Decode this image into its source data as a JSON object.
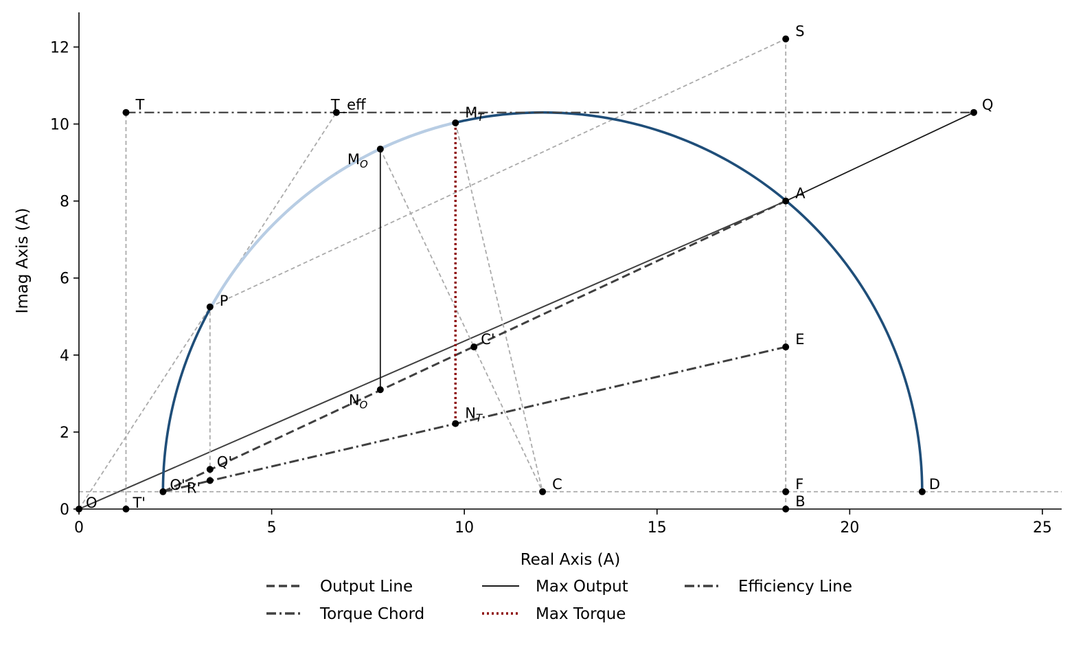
{
  "chart_data": {
    "type": "line",
    "xlabel": "Real Axis (A)",
    "ylabel": "Imag Axis (A)",
    "xlim": [
      0,
      25.5
    ],
    "ylim": [
      0,
      12.9
    ],
    "x_ticks": [
      0,
      5,
      10,
      15,
      20,
      25
    ],
    "y_ticks": [
      0,
      2,
      4,
      6,
      8,
      10,
      12
    ],
    "grid": false,
    "legend_position": "bottom",
    "circle": {
      "center": [
        12.03,
        0.45
      ],
      "radius": 9.85,
      "color": "#1f4e79"
    },
    "points": [
      {
        "id": "O",
        "label": "O",
        "x": 0.0,
        "y": 0.0,
        "dx": 10,
        "dy": -2
      },
      {
        "id": "Op",
        "label": "O'",
        "x": 2.18,
        "y": 0.45,
        "dx": 10,
        "dy": -3
      },
      {
        "id": "Tp",
        "label": "T'",
        "x": 1.22,
        "y": 0.0,
        "dx": 10,
        "dy": -2
      },
      {
        "id": "Rp",
        "label": "R'",
        "x": 3.4,
        "y": 0.74,
        "dx": -34,
        "dy": 18
      },
      {
        "id": "Qp",
        "label": "Q'",
        "x": 3.4,
        "y": 1.03,
        "dx": 10,
        "dy": -4
      },
      {
        "id": "P",
        "label": "P",
        "x": 3.4,
        "y": 5.25,
        "dx": 14,
        "dy": -2
      },
      {
        "id": "T",
        "label": "T",
        "x": 1.22,
        "y": 10.3,
        "dx": 14,
        "dy": -4
      },
      {
        "id": "Teff",
        "label": "T_eff",
        "x": 6.68,
        "y": 10.3,
        "dx": -8,
        "dy": -4
      },
      {
        "id": "MO",
        "label": "M",
        "sub": "O",
        "x": 7.82,
        "y": 9.35,
        "dx": -48,
        "dy": 22
      },
      {
        "id": "MT",
        "label": "M",
        "sub": "T",
        "x": 9.77,
        "y": 10.03,
        "dx": 14,
        "dy": -8
      },
      {
        "id": "NO",
        "label": "N",
        "sub": "O",
        "x": 7.82,
        "y": 3.1,
        "dx": -46,
        "dy": 22
      },
      {
        "id": "NT",
        "label": "N",
        "sub": "T",
        "x": 9.77,
        "y": 2.22,
        "dx": 14,
        "dy": -8
      },
      {
        "id": "Cp",
        "label": "C'",
        "x": 10.25,
        "y": 4.21,
        "dx": 10,
        "dy": -4
      },
      {
        "id": "C",
        "label": "C",
        "x": 12.03,
        "y": 0.45,
        "dx": 14,
        "dy": -4
      },
      {
        "id": "D",
        "label": "D",
        "x": 21.88,
        "y": 0.45,
        "dx": 10,
        "dy": -4
      },
      {
        "id": "S",
        "label": "S",
        "x": 18.34,
        "y": 12.21,
        "dx": 14,
        "dy": -4
      },
      {
        "id": "Q",
        "label": "Q",
        "x": 23.22,
        "y": 10.3,
        "dx": 12,
        "dy": -4
      },
      {
        "id": "A",
        "label": "A",
        "x": 18.34,
        "y": 8.0,
        "dx": 14,
        "dy": -4
      },
      {
        "id": "E",
        "label": "E",
        "x": 18.34,
        "y": 4.21,
        "dx": 14,
        "dy": -4
      },
      {
        "id": "F",
        "label": "F",
        "x": 18.34,
        "y": 0.45,
        "dx": 14,
        "dy": -4
      },
      {
        "id": "B",
        "label": "B",
        "x": 18.34,
        "y": 0.0,
        "dx": 14,
        "dy": -4
      }
    ],
    "series": [
      {
        "name": "Output Line",
        "style": "dashed",
        "color": "#404040",
        "width": 3,
        "points": [
          [
            2.18,
            0.45
          ],
          [
            18.34,
            8.0
          ]
        ]
      },
      {
        "name": "Torque Chord",
        "style": "dashdot",
        "color": "#404040",
        "width": 3,
        "points": [
          [
            2.18,
            0.45
          ],
          [
            18.34,
            4.21
          ]
        ]
      },
      {
        "name": "Max Output",
        "style": "solid",
        "color": "#1a1a1a",
        "width": 1.8,
        "points": [
          [
            7.82,
            9.35
          ],
          [
            7.82,
            3.1
          ]
        ]
      },
      {
        "name": "Max Torque",
        "style": "dotted",
        "color": "#8b0000",
        "width": 3.5,
        "points": [
          [
            9.77,
            10.03
          ],
          [
            9.77,
            2.22
          ]
        ]
      },
      {
        "name": "Efficiency Line",
        "style": "dashdot",
        "color": "#404040",
        "width": 2.2,
        "points": [
          [
            1.22,
            10.3
          ],
          [
            23.22,
            10.3
          ]
        ]
      }
    ],
    "construction_lines": [
      {
        "style": "solid",
        "color": "#404040",
        "width": 2,
        "points": [
          [
            0.0,
            0.0
          ],
          [
            18.34,
            8.0
          ]
        ]
      },
      {
        "style": "solid",
        "color": "#1a1a1a",
        "width": 1.8,
        "points": [
          [
            18.34,
            8.0
          ],
          [
            23.22,
            10.3
          ]
        ]
      },
      {
        "style": "grey",
        "points": [
          [
            0.0,
            0.45
          ],
          [
            25.5,
            0.45
          ]
        ]
      },
      {
        "style": "grey",
        "points": [
          [
            18.34,
            0.0
          ],
          [
            18.34,
            12.21
          ]
        ]
      },
      {
        "style": "grey",
        "points": [
          [
            1.22,
            0.0
          ],
          [
            1.22,
            10.3
          ]
        ]
      },
      {
        "style": "grey",
        "points": [
          [
            3.4,
            0.74
          ],
          [
            3.4,
            5.25
          ]
        ]
      },
      {
        "style": "grey",
        "points": [
          [
            0.0,
            0.0
          ],
          [
            6.68,
            10.3
          ]
        ]
      },
      {
        "style": "grey",
        "points": [
          [
            3.4,
            5.25
          ],
          [
            18.34,
            12.21
          ]
        ]
      },
      {
        "style": "grey",
        "points": [
          [
            7.82,
            9.35
          ],
          [
            12.03,
            0.45
          ]
        ]
      },
      {
        "style": "grey",
        "points": [
          [
            9.77,
            10.03
          ],
          [
            12.03,
            0.45
          ]
        ]
      }
    ],
    "arc_highlights": [
      [
        3.4,
        6.68
      ],
      [
        6.68,
        7.82
      ],
      [
        7.82,
        9.77
      ]
    ],
    "legend": {
      "rows": [
        [
          {
            "series": "Output Line"
          },
          {
            "series": "Max Output"
          },
          {
            "series": "Efficiency Line"
          }
        ],
        [
          {
            "series": "Torque Chord"
          },
          {
            "series": "Max Torque"
          }
        ]
      ]
    }
  }
}
